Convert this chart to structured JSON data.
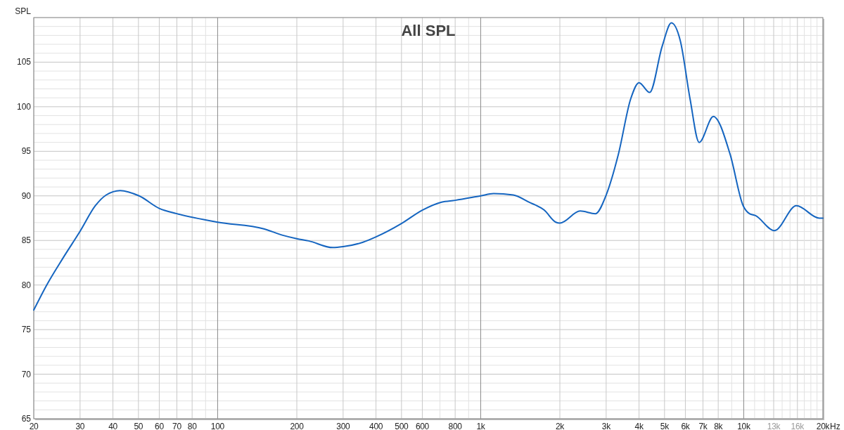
{
  "chart_data": {
    "type": "line",
    "title": "All SPL",
    "ylabel": "SPL",
    "log": "x",
    "grid": true,
    "marker": "none",
    "line_style": "solid",
    "xlabel": "Hz",
    "xlim": [
      20,
      20000
    ],
    "xticks": [
      20,
      30,
      40,
      50,
      60,
      70,
      80,
      {
        "value": 90,
        "label": null
      },
      100,
      200,
      300,
      400,
      500,
      600,
      {
        "value": 700,
        "label": null
      },
      800,
      {
        "value": 900,
        "label": null
      },
      {
        "value": 1000,
        "label": "1k"
      },
      {
        "value": 2000,
        "label": "2k"
      },
      {
        "value": 3000,
        "label": "3k"
      },
      {
        "value": 4000,
        "label": "4k"
      },
      {
        "value": 5000,
        "label": "5k"
      },
      {
        "value": 6000,
        "label": "6k"
      },
      {
        "value": 7000,
        "label": "7k"
      },
      {
        "value": 8000,
        "label": "8k"
      },
      {
        "value": 9000,
        "label": null
      },
      {
        "value": 10000,
        "label": "10k"
      },
      {
        "value": 11000,
        "label": null
      },
      {
        "value": 12000,
        "label": null
      },
      {
        "value": 13000,
        "label": "13k"
      },
      {
        "value": 14000,
        "label": null
      },
      {
        "value": 15000,
        "label": null
      },
      {
        "value": 16000,
        "label": "16k"
      },
      {
        "value": 17000,
        "label": null
      },
      {
        "value": 18000,
        "label": null
      },
      {
        "value": 19000,
        "label": null
      },
      {
        "value": 20000,
        "label": "20k"
      }
    ],
    "ylim": [
      65,
      110
    ],
    "yticks": [
      65,
      {
        "value": 66,
        "label": null
      },
      {
        "value": 67,
        "label": null
      },
      {
        "value": 68,
        "label": null
      },
      {
        "value": 69,
        "label": null
      },
      70,
      {
        "value": 71,
        "label": null
      },
      {
        "value": 72,
        "label": null
      },
      {
        "value": 73,
        "label": null
      },
      {
        "value": 74,
        "label": null
      },
      75,
      {
        "value": 76,
        "label": null
      },
      {
        "value": 77,
        "label": null
      },
      {
        "value": 78,
        "label": null
      },
      {
        "value": 79,
        "label": null
      },
      80,
      {
        "value": 81,
        "label": null
      },
      {
        "value": 82,
        "label": null
      },
      {
        "value": 83,
        "label": null
      },
      {
        "value": 84,
        "label": null
      },
      85,
      {
        "value": 86,
        "label": null
      },
      {
        "value": 87,
        "label": null
      },
      {
        "value": 88,
        "label": null
      },
      {
        "value": 89,
        "label": null
      },
      90,
      {
        "value": 91,
        "label": null
      },
      {
        "value": 92,
        "label": null
      },
      {
        "value": 93,
        "label": null
      },
      {
        "value": 94,
        "label": null
      },
      95,
      {
        "value": 96,
        "label": null
      },
      {
        "value": 97,
        "label": null
      },
      {
        "value": 98,
        "label": null
      },
      {
        "value": 99,
        "label": null
      },
      100,
      {
        "value": 101,
        "label": null
      },
      {
        "value": 102,
        "label": null
      },
      {
        "value": 103,
        "label": null
      },
      {
        "value": 104,
        "label": null
      },
      105,
      {
        "value": 106,
        "label": null
      },
      {
        "value": 107,
        "label": null
      },
      {
        "value": 108,
        "label": null
      },
      {
        "value": 109,
        "label": null
      },
      {
        "value": 110,
        "label": null
      }
    ],
    "x": [
      20,
      22.4,
      25.8,
      30.1,
      34.3,
      37.7,
      42.6,
      50.3,
      60,
      70,
      100,
      150,
      176,
      200,
      222,
      274,
      300,
      357,
      400,
      500,
      600,
      710,
      800,
      1000,
      1120,
      1330,
      1525,
      1745,
      1930,
      2000,
      2390,
      2730,
      3000,
      3340,
      3720,
      4000,
      4390,
      4900,
      5310,
      5740,
      6250,
      6770,
      7670,
      8870,
      9950,
      10520,
      11060,
      13080,
      15860,
      19370,
      20000
    ],
    "series": [
      {
        "color": "#1565c0",
        "values": [
          77.2,
          80,
          83,
          86.1,
          88.9,
          90.1,
          90.6,
          90,
          88.6,
          88,
          87.05,
          86.3,
          85.6,
          85.2,
          84.95,
          84.2,
          84.3,
          84.8,
          85.4,
          86.9,
          88.4,
          89.3,
          89.5,
          90,
          90.25,
          90.1,
          89.3,
          88.4,
          87.05,
          86.95,
          88.3,
          88,
          90.1,
          94.7,
          100.9,
          102.7,
          101.6,
          106.8,
          109.4,
          107.4,
          100.9,
          96,
          98.9,
          94.7,
          88.9,
          88,
          87.8,
          86.1,
          88.9,
          87.5,
          87.5
        ]
      }
    ]
  }
}
